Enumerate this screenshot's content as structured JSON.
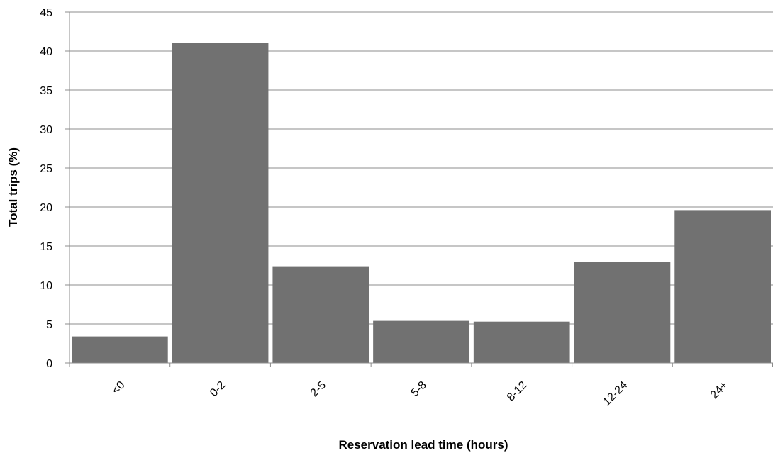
{
  "chart_data": {
    "type": "bar",
    "title": "",
    "xlabel": "Reservation lead time (hours)",
    "ylabel": "Total trips (%)",
    "categories": [
      "<0",
      "0-2",
      "2-5",
      "5-8",
      "8-12",
      "12-24",
      "24+"
    ],
    "values": [
      3.4,
      41.0,
      12.4,
      5.4,
      5.3,
      13.0,
      19.6
    ],
    "ylim": [
      0,
      45
    ],
    "yticks": [
      0,
      5,
      10,
      15,
      20,
      25,
      30,
      35,
      40,
      45
    ],
    "grid": true,
    "legend": "none",
    "colors": {
      "bar": "#717171",
      "grid": "#8c8c8c",
      "axis": "#8c8c8c"
    }
  }
}
